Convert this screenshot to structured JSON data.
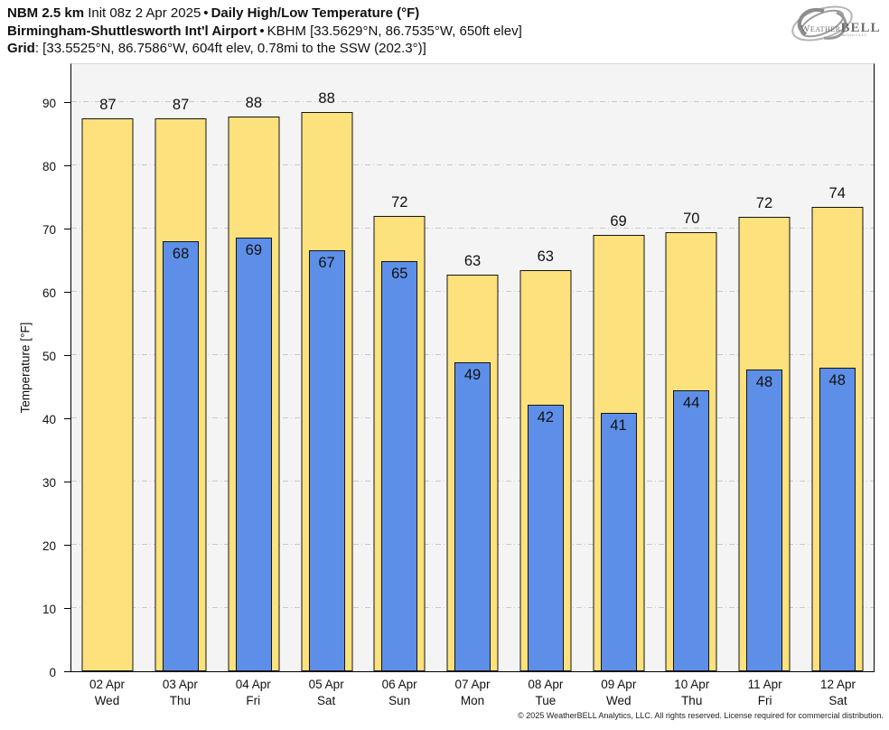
{
  "header": {
    "line1": {
      "model": "NBM 2.5 km",
      "init": "Init 08z 2 Apr 2025",
      "sep": "•",
      "title": "Daily High/Low Temperature (°F)"
    },
    "line2": {
      "station": "Birmingham-Shuttlesworth Int'l Airport",
      "sep": "•",
      "meta": "KBHM [33.5629°N, 86.7535°W, 650ft elev]"
    },
    "line3": {
      "label": "Grid",
      "value": ": [33.5525°N, 86.7586°W, 604ft elev, 0.78mi to the SSW (202.3°)]"
    }
  },
  "logo": {
    "weather": "Weather",
    "bell": "BELL",
    "sub": "Analytics LLC"
  },
  "chart_data": {
    "type": "bar",
    "title": "Daily High/Low Temperature (°F)",
    "ylabel": "Temperature [°F]",
    "ylim": [
      0,
      96.3
    ],
    "yticks": [
      0,
      10,
      20,
      30,
      40,
      50,
      60,
      70,
      80,
      90
    ],
    "grid": "dashed horizontal",
    "legend_position": "none",
    "categories": [
      "02 Apr",
      "03 Apr",
      "04 Apr",
      "05 Apr",
      "06 Apr",
      "07 Apr",
      "08 Apr",
      "09 Apr",
      "10 Apr",
      "11 Apr",
      "12 Apr"
    ],
    "weekdays": [
      "Wed",
      "Thu",
      "Fri",
      "Sat",
      "Sun",
      "Mon",
      "Tue",
      "Wed",
      "Thu",
      "Fri",
      "Sat"
    ],
    "series": [
      {
        "name": "Daily High",
        "color": "#fce17c",
        "values": [
          87.5,
          87.5,
          87.7,
          88.4,
          72.0,
          62.7,
          63.4,
          69.0,
          69.5,
          71.8,
          73.5
        ],
        "labels": [
          87,
          87,
          88,
          88,
          72,
          63,
          63,
          69,
          70,
          72,
          74
        ]
      },
      {
        "name": "Daily Low",
        "color": "#5e8fe8",
        "values": [
          null,
          68.0,
          68.6,
          66.6,
          64.9,
          48.8,
          42.2,
          40.8,
          44.4,
          47.7,
          48.0
        ],
        "labels": [
          null,
          68,
          69,
          67,
          65,
          49,
          42,
          41,
          44,
          48,
          48
        ]
      }
    ]
  },
  "colors": {
    "high_bar": "#fce17c",
    "low_bar": "#5e8fe8",
    "bar_border": "#141414",
    "plot_bg": "#f4f4f4",
    "gridline": "#c9c9c9"
  },
  "footer": {
    "copyright": "© 2025 WeatherBELL Analytics, LLC. All rights reserved. License required for commercial distribution."
  }
}
